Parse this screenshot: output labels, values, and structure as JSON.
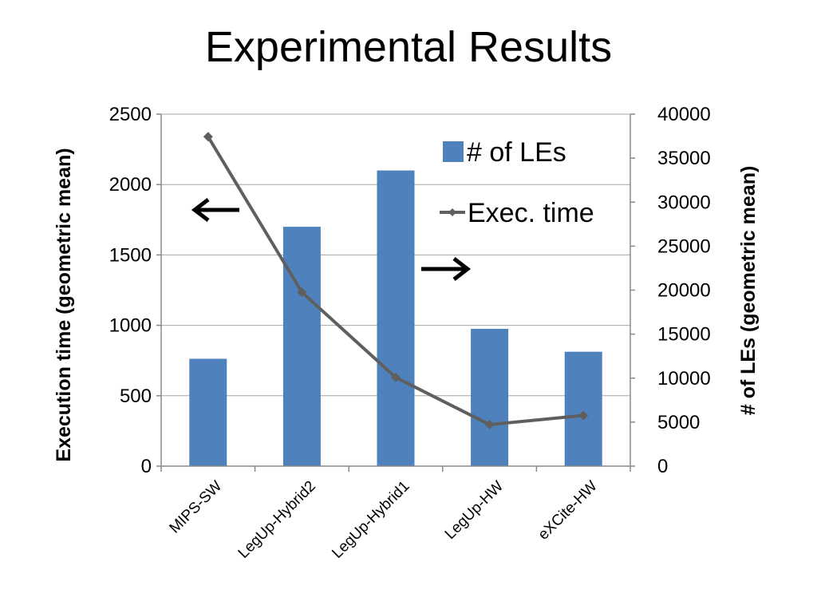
{
  "slide": {
    "title": "Experimental Results"
  },
  "chart_data": {
    "type": "bar",
    "categories": [
      "MIPS-SW",
      "LegUp-Hybrid2",
      "LegUp-Hybrid1",
      "LegUp-HW",
      "eXCite-HW"
    ],
    "series": [
      {
        "name": "# of LEs",
        "type": "bar",
        "axis": "right",
        "values": [
          12200,
          27200,
          33600,
          15600,
          13000
        ],
        "color": "#4F81BD"
      },
      {
        "name": "Exec. time",
        "type": "line",
        "axis": "left",
        "values": [
          2340,
          1235,
          630,
          295,
          360
        ],
        "color": "#5F5F5F"
      }
    ],
    "ylabel": "Execution time (geometric mean)",
    "y2label": "# of LEs (geometric mean)",
    "ylim": [
      0,
      2500
    ],
    "y2lim": [
      0,
      40000
    ],
    "yticks": [
      "0",
      "500",
      "1000",
      "1500",
      "2000",
      "2500"
    ],
    "y2ticks": [
      "0",
      "5000",
      "10000",
      "15000",
      "20000",
      "25000",
      "30000",
      "35000",
      "40000"
    ],
    "grid": true,
    "legend_position": "top-right",
    "annotations": [
      {
        "type": "arrow",
        "direction": "left",
        "meaning": "points to left axis"
      },
      {
        "type": "arrow",
        "direction": "right",
        "meaning": "points to right axis"
      }
    ]
  }
}
